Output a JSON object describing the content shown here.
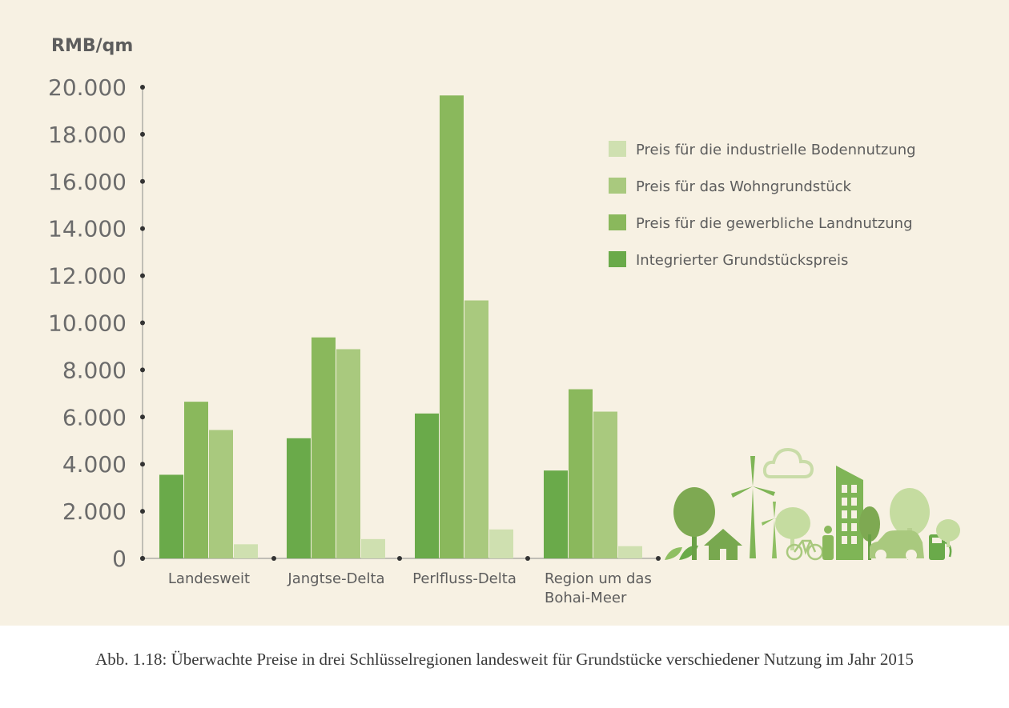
{
  "caption": "Abb. 1.18: Überwachte Preise in drei Schlüsselregionen landesweit für Grundstücke verschiedener Nutzung im Jahr 2015",
  "chart_data": {
    "type": "bar",
    "title": "",
    "xlabel": "",
    "ylabel": "RMB/qm",
    "ylim": [
      0,
      20000
    ],
    "yticks": [
      0,
      2000,
      4000,
      6000,
      8000,
      10000,
      12000,
      14000,
      16000,
      18000,
      20000
    ],
    "ytick_labels": [
      "0",
      "2.000",
      "4.000",
      "6.000",
      "8.000",
      "10.000",
      "12.000",
      "14.000",
      "16.000",
      "18.000",
      "20.000"
    ],
    "categories": [
      [
        "Landesweit"
      ],
      [
        "Jangtse-Delta"
      ],
      [
        "Perlfluss-Delta"
      ],
      [
        "Region um das",
        "Bohai-Meer"
      ]
    ],
    "series": [
      {
        "name": "Integrierter Grundstückspreis",
        "color": "#6aaa4a",
        "values": [
          3550,
          5100,
          6150,
          3730
        ]
      },
      {
        "name": "Preis für die gewerbliche Landnutzung",
        "color": "#8ab85c",
        "values": [
          6650,
          9380,
          19650,
          7180
        ]
      },
      {
        "name": "Preis für das Wohngrundstück",
        "color": "#a9c97e",
        "values": [
          5450,
          8880,
          10950,
          6230
        ]
      },
      {
        "name": "Preis für die industrielle Bodennutzung",
        "color": "#cfe0b0",
        "values": [
          600,
          820,
          1230,
          520
        ]
      }
    ],
    "legend": {
      "placement": "top-right",
      "order": [
        "Preis für die industrielle Bodennutzung",
        "Preis für das Wohngrundstück",
        "Preis für die gewerbliche Landnutzung",
        "Integrierter Grundstückspreis"
      ]
    },
    "grid": false,
    "decoration": "green-city-illustration"
  }
}
